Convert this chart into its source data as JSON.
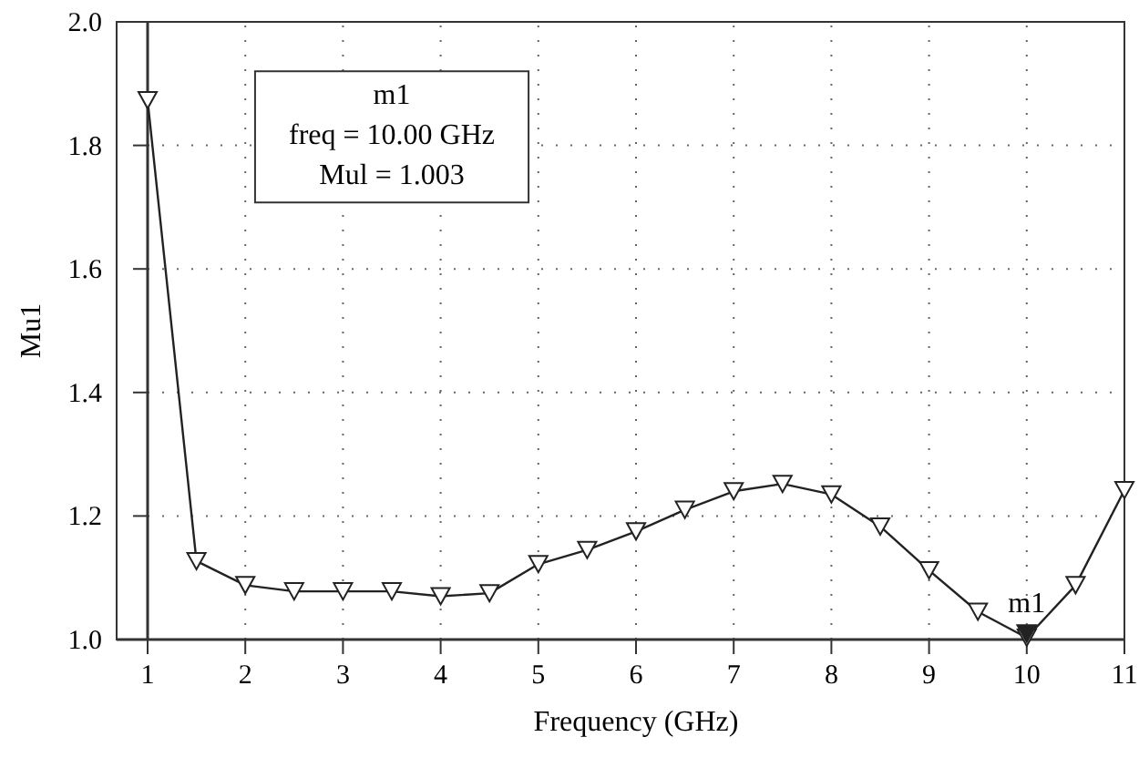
{
  "chart_data": {
    "type": "line",
    "xlabel": "Frequency (GHz)",
    "ylabel": "Mu1",
    "x": [
      1,
      1.5,
      2,
      2.5,
      3,
      3.5,
      4,
      4.5,
      5,
      5.5,
      6,
      6.5,
      7,
      7.5,
      8,
      8.5,
      9,
      9.5,
      10,
      10.5,
      11
    ],
    "series": [
      {
        "color": "#222222",
        "values": [
          1.873,
          1.127,
          1.088,
          1.078,
          1.078,
          1.078,
          1.07,
          1.075,
          1.122,
          1.145,
          1.175,
          1.21,
          1.24,
          1.252,
          1.235,
          1.183,
          1.112,
          1.045,
          1.003,
          1.088,
          1.242
        ]
      }
    ],
    "xlim": [
      1,
      11
    ],
    "xticks": [
      1,
      2,
      3,
      4,
      5,
      6,
      7,
      8,
      9,
      10,
      11
    ],
    "ylim": [
      1,
      2
    ],
    "yticks": [
      {
        "value": 1,
        "label": "1.0"
      },
      {
        "value": 1.2,
        "label": "1.2"
      },
      {
        "value": 1.4,
        "label": "1.4"
      },
      {
        "value": 1.6,
        "label": "1.6"
      },
      {
        "value": 1.8,
        "label": "1.8"
      },
      {
        "value": 2,
        "label": "2.0"
      }
    ],
    "grid": true,
    "marker": "triangle",
    "line_style": "solid",
    "annotations": [
      {
        "text": "m1",
        "x": 10,
        "y": 1.003
      },
      "m1",
      "freq = 10.00 GHz",
      "Mul = 1.003"
    ]
  }
}
